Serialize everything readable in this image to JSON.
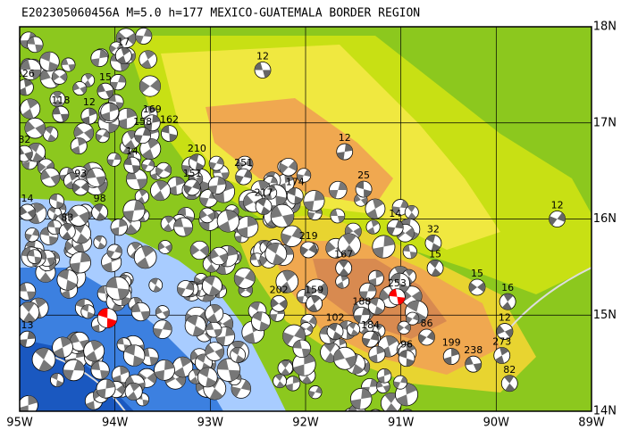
{
  "title": "E202305060456A M=5.0 h=177 MEXICO-GUATEMALA BORDER REGION",
  "lon_ticks": [
    {
      "value": -95,
      "label": "95W"
    },
    {
      "value": -94,
      "label": "94W"
    },
    {
      "value": -93,
      "label": "93W"
    },
    {
      "value": -92,
      "label": "92W"
    },
    {
      "value": -91,
      "label": "91W"
    },
    {
      "value": -90,
      "label": "90W"
    },
    {
      "value": -89,
      "label": "89W"
    }
  ],
  "lat_ticks": [
    {
      "value": 18,
      "label": "18N"
    },
    {
      "value": 17,
      "label": "17N"
    },
    {
      "value": 16,
      "label": "16N"
    },
    {
      "value": 15,
      "label": "15N"
    },
    {
      "value": 14,
      "label": "14N"
    }
  ],
  "lon_range": [
    -95,
    -89
  ],
  "lat_range": [
    14,
    18
  ],
  "events": [
    {
      "label": "12",
      "lon": -92.45,
      "lat": 17.55
    },
    {
      "label": "12",
      "lon": -91.59,
      "lat": 16.7
    },
    {
      "label": "25",
      "lon": -91.39,
      "lat": 16.31
    },
    {
      "label": "14",
      "lon": -91.06,
      "lat": 15.91
    },
    {
      "label": "32",
      "lon": -90.66,
      "lat": 15.75
    },
    {
      "label": "12",
      "lon": -89.36,
      "lat": 16.0
    },
    {
      "label": "15",
      "lon": -90.64,
      "lat": 15.49
    },
    {
      "label": "15",
      "lon": -90.2,
      "lat": 15.29
    },
    {
      "label": "16",
      "lon": -89.88,
      "lat": 15.14
    },
    {
      "label": "12",
      "lon": -89.91,
      "lat": 14.83
    },
    {
      "label": "273",
      "lon": -89.94,
      "lat": 14.58
    },
    {
      "label": "238",
      "lon": -90.24,
      "lat": 14.49
    },
    {
      "label": "199",
      "lon": -90.47,
      "lat": 14.57
    },
    {
      "label": "253",
      "lon": -91.04,
      "lat": 15.19,
      "color": "#ff0000"
    },
    {
      "label": "188",
      "lon": -91.41,
      "lat": 15.0
    },
    {
      "label": "174",
      "lon": -92.11,
      "lat": 16.24
    },
    {
      "label": "251",
      "lon": -92.65,
      "lat": 16.44
    },
    {
      "label": "217",
      "lon": -92.44,
      "lat": 16.13
    },
    {
      "label": "219",
      "lon": -91.97,
      "lat": 15.68
    },
    {
      "label": "167",
      "lon": -91.6,
      "lat": 15.49
    },
    {
      "label": "202",
      "lon": -92.28,
      "lat": 15.12
    },
    {
      "label": "159",
      "lon": -91.91,
      "lat": 15.12
    },
    {
      "label": "82",
      "lon": -94.95,
      "lat": 16.68
    },
    {
      "label": "126",
      "lon": -94.94,
      "lat": 17.37
    },
    {
      "label": "118",
      "lon": -94.57,
      "lat": 17.09
    },
    {
      "label": "169",
      "lon": -93.61,
      "lat": 17.0
    },
    {
      "label": "162",
      "lon": -93.43,
      "lat": 16.89
    },
    {
      "label": "158",
      "lon": -93.71,
      "lat": 16.87
    },
    {
      "label": "210",
      "lon": -93.14,
      "lat": 16.59
    },
    {
      "label": "151",
      "lon": -93.19,
      "lat": 16.33
    },
    {
      "label": "98",
      "lon": -94.16,
      "lat": 16.07
    },
    {
      "label": "93",
      "lon": -94.36,
      "lat": 16.33
    },
    {
      "label": "83",
      "lon": -94.5,
      "lat": 15.87
    },
    {
      "label": "14",
      "lon": -94.92,
      "lat": 16.07
    },
    {
      "label": "17",
      "lon": -93.91,
      "lat": 17.7
    },
    {
      "label": "15",
      "lon": -94.1,
      "lat": 17.33
    },
    {
      "label": "12",
      "lon": -94.27,
      "lat": 17.07
    },
    {
      "label": "14",
      "lon": -93.82,
      "lat": 16.56
    },
    {
      "label": "13",
      "lon": -94.92,
      "lat": 14.75
    },
    {
      "label": "96",
      "lon": -90.94,
      "lat": 14.55
    },
    {
      "label": "184",
      "lon": -91.32,
      "lat": 14.75
    },
    {
      "label": "102",
      "lon": -91.69,
      "lat": 14.83
    },
    {
      "label": "86",
      "lon": -90.73,
      "lat": 14.77
    },
    {
      "label": "82",
      "lon": -89.86,
      "lat": 14.29
    }
  ],
  "main_event": {
    "lon": -94.08,
    "lat": 14.97,
    "color": "#ff0000"
  }
}
